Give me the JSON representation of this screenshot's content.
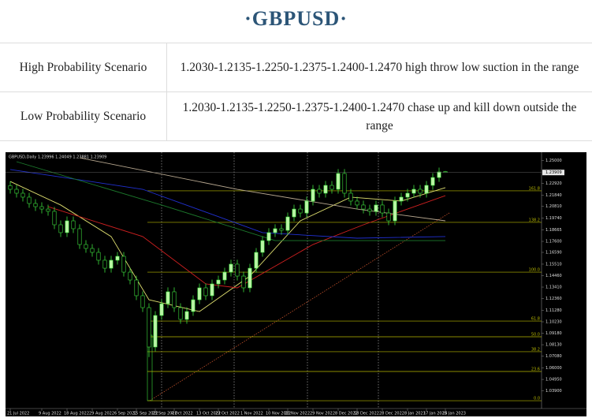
{
  "title": "·GBPUSD·",
  "table": {
    "rows": [
      [
        "High Probability Scenario",
        "1.2030-1.2135-1.2250-1.2375-1.2400-1.2470 high throw low suction in the range"
      ],
      [
        "Low Probability Scenario",
        "1.2030-1.2135-1.2250-1.2375-1.2400-1.2470 chase up and kill down outside the range"
      ]
    ]
  },
  "chart_data": {
    "type": "candlestick",
    "header": "GBPUSD,Daily  1.23996 1.24049 1.23881 1.23909",
    "up_color": "#b9f5a4",
    "down_color": "#000000",
    "wick_color": "#3ee03e",
    "ylim": [
      1.025,
      1.2555
    ],
    "grid": false,
    "yticks": [
      {
        "value": 1.25,
        "label": "1.25000"
      },
      {
        "value": 1.2292,
        "label": "1.22920"
      },
      {
        "value": 1.2184,
        "label": "1.21840"
      },
      {
        "value": 1.2081,
        "label": "1.20810"
      },
      {
        "value": 1.1974,
        "label": "1.19740"
      },
      {
        "value": 1.18665,
        "label": "1.18665"
      },
      {
        "value": 1.176,
        "label": "1.17600"
      },
      {
        "value": 1.1659,
        "label": "1.16590"
      },
      {
        "value": 1.1551,
        "label": "1.15510"
      },
      {
        "value": 1.1446,
        "label": "1.14460"
      },
      {
        "value": 1.1341,
        "label": "1.13410"
      },
      {
        "value": 1.1236,
        "label": "1.12360"
      },
      {
        "value": 1.1128,
        "label": "1.11280"
      },
      {
        "value": 1.1023,
        "label": "1.10230"
      },
      {
        "value": 1.0918,
        "label": "1.09180"
      },
      {
        "value": 1.0813,
        "label": "1.08130"
      },
      {
        "value": 1.0708,
        "label": "1.07080"
      },
      {
        "value": 1.06,
        "label": "1.06000"
      },
      {
        "value": 1.0495,
        "label": "1.04950"
      },
      {
        "value": 1.039,
        "label": "1.03900"
      }
    ],
    "categories": [
      "21 Jul 2022",
      null,
      null,
      null,
      null,
      "9 Aug 2022",
      null,
      null,
      null,
      "18 Aug 2022",
      null,
      null,
      null,
      "29 Aug 2022",
      null,
      null,
      null,
      "6 Sep 2022",
      null,
      null,
      "15 Sep 2022",
      null,
      null,
      "23 Sep 2022",
      null,
      null,
      "4 Oct 2022",
      null,
      null,
      null,
      "13 Oct 2022",
      null,
      null,
      "23 Oct 2022",
      null,
      null,
      null,
      "1 Nov 2022",
      null,
      null,
      null,
      "10 Nov 2022",
      null,
      null,
      "20 Nov 2022",
      null,
      null,
      null,
      "29 Nov 2022",
      null,
      null,
      null,
      "8 Dec 2022",
      null,
      null,
      "18 Dec 2022",
      null,
      null,
      null,
      "28 Dec 2022",
      null,
      null,
      null,
      "8 Jan 2023",
      null,
      null,
      "17 Jan 2023",
      null,
      null,
      "26 Jan 2023"
    ],
    "ohlc": [
      [
        1.227,
        1.231,
        1.2197,
        1.2237
      ],
      [
        1.2237,
        1.2277,
        1.2161,
        1.2201
      ],
      [
        1.2201,
        1.2241,
        1.2125,
        1.2165
      ],
      [
        1.2165,
        1.2205,
        1.2067,
        1.2107
      ],
      [
        1.2107,
        1.2147,
        1.2038,
        1.2078
      ],
      [
        1.2078,
        1.2118,
        1.2016,
        1.2056
      ],
      [
        1.2056,
        1.2096,
        1.1995,
        1.2035
      ],
      [
        1.2035,
        1.2075,
        1.1872,
        1.1912
      ],
      [
        1.1912,
        1.1952,
        1.18,
        1.184
      ],
      [
        1.184,
        1.1988,
        1.18,
        1.1948
      ],
      [
        1.1948,
        1.1988,
        1.1836,
        1.1876
      ],
      [
        1.1876,
        1.1916,
        1.1691,
        1.1731
      ],
      [
        1.1731,
        1.1771,
        1.1655,
        1.1695
      ],
      [
        1.1695,
        1.1735,
        1.1619,
        1.1659
      ],
      [
        1.1659,
        1.1699,
        1.1547,
        1.1587
      ],
      [
        1.1587,
        1.1627,
        1.1474,
        1.1514
      ],
      [
        1.1514,
        1.1627,
        1.1474,
        1.1587
      ],
      [
        1.1587,
        1.1663,
        1.1547,
        1.1623
      ],
      [
        1.1623,
        1.1663,
        1.1438,
        1.1478
      ],
      [
        1.1478,
        1.1518,
        1.1366,
        1.1406
      ],
      [
        1.1406,
        1.1446,
        1.1222,
        1.1262
      ],
      [
        1.1262,
        1.1302,
        1.1113,
        1.1153
      ],
      [
        1.1153,
        1.1193,
        1.07,
        1.0792
      ],
      [
        1.0792,
        1.1121,
        1.0752,
        1.1081
      ],
      [
        1.1081,
        1.1229,
        1.1041,
        1.1189
      ],
      [
        1.1189,
        1.1338,
        1.1149,
        1.1298
      ],
      [
        1.1298,
        1.1338,
        1.1113,
        1.1153
      ],
      [
        1.1153,
        1.1193,
        1.1005,
        1.1045
      ],
      [
        1.1045,
        1.1157,
        1.1005,
        1.1117
      ],
      [
        1.1117,
        1.1265,
        1.1077,
        1.1225
      ],
      [
        1.1225,
        1.1374,
        1.1185,
        1.1334
      ],
      [
        1.1334,
        1.1374,
        1.1222,
        1.1262
      ],
      [
        1.1262,
        1.141,
        1.1222,
        1.137
      ],
      [
        1.137,
        1.1446,
        1.133,
        1.1406
      ],
      [
        1.1406,
        1.1518,
        1.1366,
        1.1478
      ],
      [
        1.1478,
        1.1591,
        1.1438,
        1.1551
      ],
      [
        1.1551,
        1.1591,
        1.1402,
        1.1442
      ],
      [
        1.1442,
        1.1482,
        1.1294,
        1.1334
      ],
      [
        1.1334,
        1.1554,
        1.1294,
        1.1514
      ],
      [
        1.1514,
        1.1699,
        1.1474,
        1.1659
      ],
      [
        1.1659,
        1.1807,
        1.1619,
        1.1767
      ],
      [
        1.1767,
        1.188,
        1.1727,
        1.184
      ],
      [
        1.184,
        1.1916,
        1.18,
        1.1876
      ],
      [
        1.1876,
        1.1916,
        1.1821,
        1.1861
      ],
      [
        1.1861,
        1.2024,
        1.1821,
        1.1984
      ],
      [
        1.1984,
        1.2096,
        1.1944,
        1.2056
      ],
      [
        1.2056,
        1.2096,
        1.198,
        1.202
      ],
      [
        1.202,
        1.2169,
        1.198,
        1.2129
      ],
      [
        1.2129,
        1.2277,
        1.2089,
        1.2237
      ],
      [
        1.2237,
        1.2277,
        1.2161,
        1.2201
      ],
      [
        1.2201,
        1.2313,
        1.2161,
        1.2273
      ],
      [
        1.2273,
        1.2313,
        1.2197,
        1.2237
      ],
      [
        1.2237,
        1.2422,
        1.2197,
        1.2382
      ],
      [
        1.2382,
        1.2422,
        1.2161,
        1.2201
      ],
      [
        1.2201,
        1.2241,
        1.2089,
        1.2129
      ],
      [
        1.2129,
        1.2169,
        1.2053,
        1.2093
      ],
      [
        1.2093,
        1.2133,
        1.2016,
        1.2056
      ],
      [
        1.2056,
        1.2096,
        1.1995,
        1.2035
      ],
      [
        1.2035,
        1.2133,
        1.1995,
        1.2093
      ],
      [
        1.2093,
        1.2133,
        1.198,
        1.202
      ],
      [
        1.202,
        1.206,
        1.1908,
        1.1948
      ],
      [
        1.1948,
        1.2169,
        1.1908,
        1.2129
      ],
      [
        1.2129,
        1.2205,
        1.2089,
        1.2165
      ],
      [
        1.2165,
        1.2241,
        1.2125,
        1.2201
      ],
      [
        1.2201,
        1.2277,
        1.2161,
        1.2237
      ],
      [
        1.2237,
        1.2277,
        1.2161,
        1.2201
      ],
      [
        1.2201,
        1.2313,
        1.2161,
        1.2273
      ],
      [
        1.2273,
        1.2385,
        1.2233,
        1.2345
      ],
      [
        1.2345,
        1.2436,
        1.2305,
        1.2396
      ],
      [
        1.23996,
        1.24049,
        1.23881,
        1.23909
      ]
    ],
    "series": [
      {
        "color": "#e0e070",
        "x": [
          0,
          8,
          16,
          22,
          30,
          38,
          46,
          54,
          62,
          69
        ],
        "values": [
          1.2309,
          1.2093,
          1.1804,
          1.1225,
          1.1117,
          1.1442,
          1.1948,
          1.2165,
          1.2129,
          1.2252
        ]
      },
      {
        "color": "#d02020",
        "x": [
          6,
          21,
          31,
          36,
          48,
          56,
          69
        ],
        "values": [
          1.2078,
          1.1804,
          1.137,
          1.1334,
          1.1731,
          1.1912,
          1.2179
        ]
      },
      {
        "color": "#2030d0",
        "x": [
          0,
          21,
          40,
          55,
          69
        ],
        "values": [
          1.2418,
          1.2237,
          1.184,
          1.1789,
          1.1804
        ]
      },
      {
        "color": "#b8a890",
        "x": [
          11,
          36,
          55,
          69
        ],
        "values": [
          1.2526,
          1.2237,
          1.2056,
          1.1948
        ]
      },
      {
        "color": "#1c7a2c",
        "x": [
          1,
          24,
          42,
          69
        ],
        "values": [
          1.249,
          1.2093,
          1.1767,
          1.1767
        ]
      }
    ],
    "fib_color": "#b8b800",
    "fib_levels": [
      {
        "label": "161.8",
        "price": 1.2223
      },
      {
        "label": "138.2",
        "price": 1.1934
      },
      {
        "label": "100.0",
        "price": 1.1478
      },
      {
        "label": "61.8",
        "price": 1.103
      },
      {
        "label": "50.0",
        "price": 1.0886
      },
      {
        "label": "38.2",
        "price": 1.0749
      },
      {
        "label": "23.6",
        "price": 1.0568
      },
      {
        "label": "0.0",
        "price": 1.03
      }
    ]
  }
}
